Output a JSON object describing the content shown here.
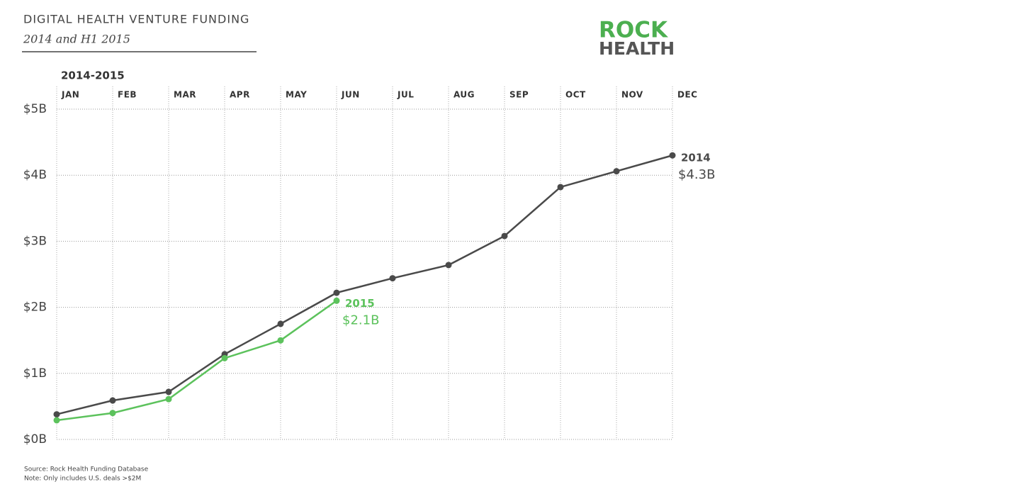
{
  "chart_data": {
    "type": "line",
    "title": "DIGITAL HEALTH VENTURE FUNDING",
    "subtitle": "2014 and H1 2015",
    "xlabel": "2014-2015",
    "logo": [
      "ROCK",
      "HEALTH"
    ],
    "source": "Source: Rock Health Funding Database",
    "note": "Note: Only includes U.S. deals >$2M",
    "categories": [
      "JAN",
      "FEB",
      "MAR",
      "APR",
      "MAY",
      "JUN",
      "JUL",
      "AUG",
      "SEP",
      "OCT",
      "NOV",
      "DEC"
    ],
    "series": [
      {
        "name": "2014",
        "color": "#4a4a4a",
        "values": [
          0.38,
          0.59,
          0.72,
          1.29,
          1.75,
          2.22,
          2.44,
          2.64,
          3.08,
          3.82,
          4.06,
          4.3
        ],
        "value_labels": {
          "11": "$4.3B"
        }
      },
      {
        "name": "2015",
        "color": "#5cc25c",
        "values": [
          0.29,
          0.4,
          0.61,
          1.23,
          1.5,
          2.1,
          null,
          null,
          null,
          null,
          null,
          null
        ],
        "value_labels": {
          "5": "$2.1B"
        }
      }
    ],
    "ylim": [
      0,
      5
    ],
    "yticks": [
      {
        "value": 0,
        "label": "$0B"
      },
      {
        "value": 1,
        "label": "$1B"
      },
      {
        "value": 2,
        "label": "$2B"
      },
      {
        "value": 3,
        "label": "$3B"
      },
      {
        "value": 4,
        "label": "$4B"
      },
      {
        "value": 5,
        "label": "$5B"
      }
    ],
    "grid": true
  }
}
